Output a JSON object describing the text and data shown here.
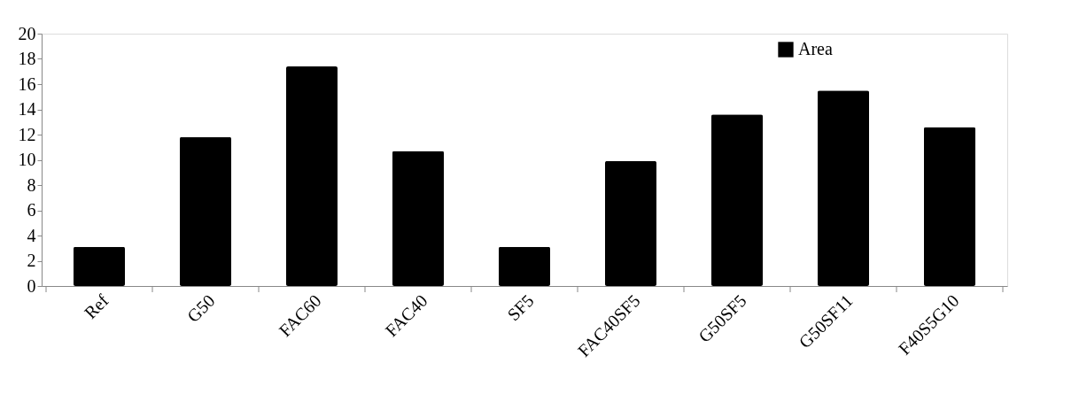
{
  "chart_data": {
    "type": "bar",
    "categories": [
      "Ref",
      "G50",
      "FAC60",
      "FAC40",
      "SF5",
      "FAC40SF5",
      "G50SF5",
      "G50SF11",
      "F40S5G10"
    ],
    "series": [
      {
        "name": "Area",
        "color": "#000000",
        "values": [
          3.1,
          11.8,
          17.4,
          10.7,
          3.1,
          9.9,
          13.6,
          15.5,
          12.6
        ]
      }
    ],
    "ylim": [
      0,
      20
    ],
    "yticks": [
      0,
      2,
      4,
      6,
      8,
      10,
      12,
      14,
      16,
      18,
      20
    ],
    "grid": false,
    "legend": "top right"
  }
}
